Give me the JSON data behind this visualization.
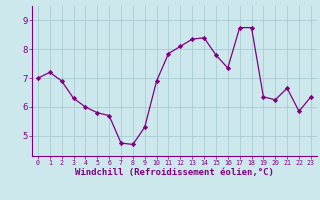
{
  "x": [
    0,
    1,
    2,
    3,
    4,
    5,
    6,
    7,
    8,
    9,
    10,
    11,
    12,
    13,
    14,
    15,
    16,
    17,
    18,
    19,
    20,
    21,
    22,
    23
  ],
  "y": [
    7.0,
    7.2,
    6.9,
    6.3,
    6.0,
    5.8,
    5.7,
    4.75,
    4.7,
    5.3,
    6.9,
    7.85,
    8.1,
    8.35,
    8.4,
    7.8,
    7.35,
    8.75,
    8.75,
    6.35,
    6.25,
    6.65,
    5.85,
    6.35
  ],
  "line_color": "#800080",
  "marker": "D",
  "marker_size": 2.2,
  "bg_color": "#cce8ec",
  "grid_color": "#aaccd4",
  "xlabel": "Windchill (Refroidissement éolien,°C)",
  "xlabel_fontsize": 6.5,
  "ylabel_ticks": [
    5,
    6,
    7,
    8,
    9
  ],
  "ylim": [
    4.3,
    9.5
  ],
  "xlim": [
    -0.5,
    23.5
  ]
}
